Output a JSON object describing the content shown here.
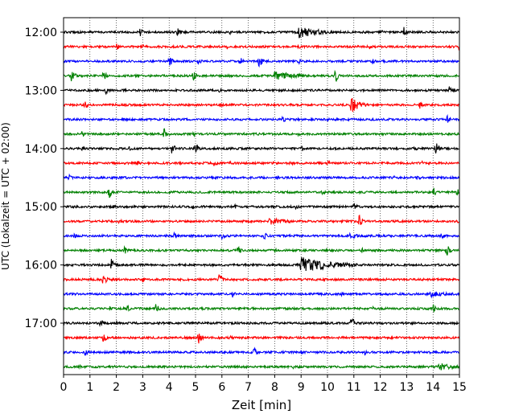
{
  "chart_data": {
    "type": "line",
    "title": "",
    "xlabel": "Zeit  [min]",
    "ylabel": "UTC (Lokalzeit = UTC + 02:00)",
    "xlim": [
      0,
      15
    ],
    "x_ticks": [
      0,
      1,
      2,
      3,
      4,
      5,
      6,
      7,
      8,
      9,
      10,
      11,
      12,
      13,
      14,
      15
    ],
    "y_tick_labels": [
      "12:00",
      "13:00",
      "14:00",
      "15:00",
      "16:00",
      "17:00"
    ],
    "grid": "vertical dotted at each minute",
    "trace_colors": [
      "#000000",
      "#ff0000",
      "#0000ff",
      "#008000"
    ],
    "traces": [
      {
        "start": "12:00",
        "color": "#000000",
        "events": [
          {
            "t": 2.9,
            "a": 6
          },
          {
            "t": 4.3,
            "a": 9
          },
          {
            "t": 6.3,
            "a": 3
          },
          {
            "t": 8.9,
            "a": 8,
            "d": 0.8
          },
          {
            "t": 12.0,
            "a": 4
          },
          {
            "t": 12.9,
            "a": 7
          }
        ]
      },
      {
        "start": "12:15",
        "color": "#ff0000",
        "events": [
          {
            "t": 2.0,
            "a": 5
          },
          {
            "t": 3.0,
            "a": 3
          },
          {
            "t": 6.2,
            "a": 3
          },
          {
            "t": 8.9,
            "a": 3
          },
          {
            "t": 11.6,
            "a": 3
          },
          {
            "t": 15.0,
            "a": 8
          }
        ]
      },
      {
        "start": "12:30",
        "color": "#0000ff",
        "events": [
          {
            "t": 4.0,
            "a": 8
          },
          {
            "t": 5.1,
            "a": 5
          },
          {
            "t": 6.7,
            "a": 6
          },
          {
            "t": 7.4,
            "a": 9
          },
          {
            "t": 8.9,
            "a": 4
          },
          {
            "t": 11.7,
            "a": 4
          },
          {
            "t": 14.2,
            "a": 4
          }
        ]
      },
      {
        "start": "12:45",
        "color": "#008000",
        "events": [
          {
            "t": 0.3,
            "a": 10
          },
          {
            "t": 1.5,
            "a": 8
          },
          {
            "t": 4.9,
            "a": 7
          },
          {
            "t": 8.0,
            "a": 6,
            "d": 0.9
          },
          {
            "t": 10.3,
            "a": 10
          }
        ]
      },
      {
        "start": "13:00",
        "color": "#000000",
        "events": [
          {
            "t": 1.6,
            "a": 5
          },
          {
            "t": 5.9,
            "a": 4
          },
          {
            "t": 8.9,
            "a": 3
          },
          {
            "t": 14.6,
            "a": 6
          }
        ]
      },
      {
        "start": "13:15",
        "color": "#ff0000",
        "events": [
          {
            "t": 0.8,
            "a": 6
          },
          {
            "t": 5.9,
            "a": 4
          },
          {
            "t": 10.9,
            "a": 12,
            "d": 0.3
          },
          {
            "t": 13.5,
            "a": 5
          }
        ]
      },
      {
        "start": "13:30",
        "color": "#0000ff",
        "events": [
          {
            "t": 5.8,
            "a": 3
          },
          {
            "t": 8.3,
            "a": 5
          },
          {
            "t": 10.0,
            "a": 3
          },
          {
            "t": 14.5,
            "a": 7
          }
        ]
      },
      {
        "start": "13:45",
        "color": "#008000",
        "events": [
          {
            "t": 0.7,
            "a": 4
          },
          {
            "t": 3.8,
            "a": 8
          },
          {
            "t": 4.9,
            "a": 4
          },
          {
            "t": 8.9,
            "a": 3
          }
        ]
      },
      {
        "start": "14:00",
        "color": "#000000",
        "events": [
          {
            "t": 0.7,
            "a": 4
          },
          {
            "t": 2.5,
            "a": 4
          },
          {
            "t": 4.1,
            "a": 8
          },
          {
            "t": 5.0,
            "a": 8
          },
          {
            "t": 9.0,
            "a": 4
          },
          {
            "t": 13.3,
            "a": 4
          },
          {
            "t": 14.1,
            "a": 10
          }
        ]
      },
      {
        "start": "14:15",
        "color": "#ff0000",
        "events": [
          {
            "t": 2.8,
            "a": 4
          },
          {
            "t": 5.7,
            "a": 5
          },
          {
            "t": 6.3,
            "a": 3
          },
          {
            "t": 8.6,
            "a": 3
          },
          {
            "t": 10.0,
            "a": 4
          },
          {
            "t": 13.6,
            "a": 3
          }
        ]
      },
      {
        "start": "14:30",
        "color": "#0000ff",
        "events": [
          {
            "t": 0.2,
            "a": 4
          },
          {
            "t": 4.2,
            "a": 3
          },
          {
            "t": 8.0,
            "a": 6
          },
          {
            "t": 12.5,
            "a": 3
          },
          {
            "t": 13.4,
            "a": 4
          }
        ]
      },
      {
        "start": "14:45",
        "color": "#008000",
        "events": [
          {
            "t": 1.7,
            "a": 10
          },
          {
            "t": 4.9,
            "a": 3
          },
          {
            "t": 9.8,
            "a": 4
          },
          {
            "t": 14.0,
            "a": 7
          },
          {
            "t": 14.9,
            "a": 6
          }
        ]
      },
      {
        "start": "15:00",
        "color": "#000000",
        "events": [
          {
            "t": 1.9,
            "a": 4
          },
          {
            "t": 4.9,
            "a": 3
          },
          {
            "t": 6.5,
            "a": 3
          },
          {
            "t": 8.8,
            "a": 4
          },
          {
            "t": 11.0,
            "a": 6
          }
        ]
      },
      {
        "start": "15:15",
        "color": "#ff0000",
        "events": [
          {
            "t": 2.1,
            "a": 4
          },
          {
            "t": 7.8,
            "a": 5,
            "d": 0.7
          },
          {
            "t": 11.2,
            "a": 10
          },
          {
            "t": 14.9,
            "a": 4
          }
        ]
      },
      {
        "start": "15:30",
        "color": "#0000ff",
        "events": [
          {
            "t": 0.4,
            "a": 4
          },
          {
            "t": 4.2,
            "a": 5
          },
          {
            "t": 6.0,
            "a": 5
          },
          {
            "t": 7.6,
            "a": 5
          },
          {
            "t": 10.8,
            "a": 4,
            "d": 0.5
          },
          {
            "t": 14.3,
            "a": 6
          }
        ]
      },
      {
        "start": "15:45",
        "color": "#008000",
        "events": [
          {
            "t": 1.3,
            "a": 3
          },
          {
            "t": 2.3,
            "a": 6
          },
          {
            "t": 6.6,
            "a": 7
          },
          {
            "t": 8.0,
            "a": 3
          },
          {
            "t": 11.3,
            "a": 4
          },
          {
            "t": 14.5,
            "a": 10
          }
        ]
      },
      {
        "start": "16:00",
        "color": "#000000",
        "events": [
          {
            "t": 1.8,
            "a": 9
          },
          {
            "t": 9.0,
            "a": 11,
            "d": 1.2
          }
        ]
      },
      {
        "start": "16:15",
        "color": "#ff0000",
        "events": [
          {
            "t": 1.5,
            "a": 9
          },
          {
            "t": 3.0,
            "a": 4
          },
          {
            "t": 5.9,
            "a": 9
          },
          {
            "t": 9.4,
            "a": 3
          }
        ]
      },
      {
        "start": "16:30",
        "color": "#0000ff",
        "events": [
          {
            "t": 6.4,
            "a": 5
          },
          {
            "t": 10.5,
            "a": 3
          },
          {
            "t": 13.9,
            "a": 6,
            "d": 0.6
          }
        ]
      },
      {
        "start": "16:45",
        "color": "#008000",
        "events": [
          {
            "t": 1.7,
            "a": 5
          },
          {
            "t": 2.4,
            "a": 5
          },
          {
            "t": 3.5,
            "a": 7
          },
          {
            "t": 7.1,
            "a": 3
          },
          {
            "t": 11.7,
            "a": 3
          },
          {
            "t": 14.0,
            "a": 6
          }
        ]
      },
      {
        "start": "17:00",
        "color": "#000000",
        "events": [
          {
            "t": 1.4,
            "a": 7
          },
          {
            "t": 2.0,
            "a": 3
          },
          {
            "t": 9.9,
            "a": 3
          },
          {
            "t": 10.9,
            "a": 9
          },
          {
            "t": 13.2,
            "a": 3
          }
        ]
      },
      {
        "start": "17:15",
        "color": "#ff0000",
        "events": [
          {
            "t": 1.5,
            "a": 7
          },
          {
            "t": 5.1,
            "a": 9
          },
          {
            "t": 6.3,
            "a": 3
          }
        ]
      },
      {
        "start": "17:30",
        "color": "#0000ff",
        "events": [
          {
            "t": 0.8,
            "a": 6
          },
          {
            "t": 7.2,
            "a": 7
          },
          {
            "t": 9.0,
            "a": 3
          },
          {
            "t": 11.4,
            "a": 4
          },
          {
            "t": 13.9,
            "a": 3
          }
        ]
      },
      {
        "start": "17:45",
        "color": "#008000",
        "events": [
          {
            "t": 0.6,
            "a": 3
          },
          {
            "t": 1.9,
            "a": 3
          },
          {
            "t": 8.7,
            "a": 3
          },
          {
            "t": 14.2,
            "a": 5,
            "d": 0.7
          }
        ]
      }
    ]
  }
}
